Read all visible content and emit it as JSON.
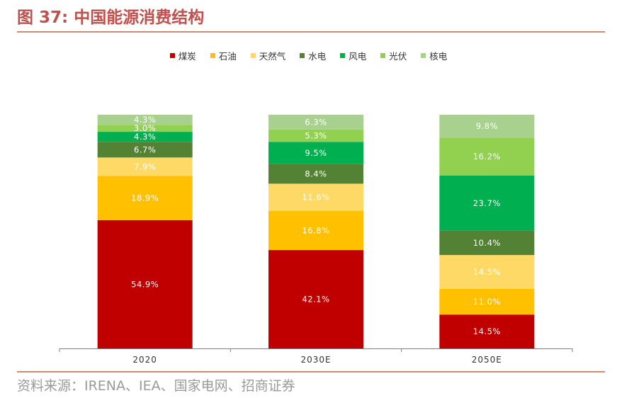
{
  "header": {
    "title": "图 37:  中国能源消费结构"
  },
  "footer": {
    "source": "资料来源：IRENA、IEA、国家电网、招商证券"
  },
  "chart_data": {
    "type": "bar",
    "stacked": true,
    "percent_stacked": true,
    "title": "中国能源消费结构",
    "xlabel": "",
    "ylabel": "",
    "ylim": [
      0,
      100
    ],
    "grid": false,
    "legend_position": "top-center",
    "categories": [
      "2020",
      "2030E",
      "2050E"
    ],
    "series": [
      {
        "name": "煤炭",
        "color": "#c00000",
        "values": [
          54.9,
          42.1,
          14.5
        ],
        "labels": [
          "54.9%",
          "42.1%",
          "14.5%"
        ]
      },
      {
        "name": "石油",
        "color": "#ffc000",
        "values": [
          18.9,
          16.8,
          11.0
        ],
        "labels": [
          "18.9%",
          "16.8%",
          "11.0%"
        ]
      },
      {
        "name": "天然气",
        "color": "#ffd966",
        "values": [
          7.9,
          11.6,
          14.5
        ],
        "labels": [
          "7.9%",
          "11.6%",
          "14.5%"
        ]
      },
      {
        "name": "水电",
        "color": "#548235",
        "values": [
          6.7,
          8.4,
          10.4
        ],
        "labels": [
          "6.7%",
          "8.4%",
          "10.4%"
        ]
      },
      {
        "name": "风电",
        "color": "#00b050",
        "values": [
          4.3,
          9.5,
          23.7
        ],
        "labels": [
          "4.3%",
          "9.5%",
          "23.7%"
        ]
      },
      {
        "name": "光伏",
        "color": "#92d050",
        "values": [
          3.0,
          5.3,
          16.2
        ],
        "labels": [
          "3.0%",
          "5.3%",
          "16.2%"
        ]
      },
      {
        "name": "核电",
        "color": "#a9d18e",
        "values": [
          4.3,
          6.3,
          9.8
        ],
        "labels": [
          "4.3%",
          "6.3%",
          "9.8%"
        ]
      }
    ]
  }
}
